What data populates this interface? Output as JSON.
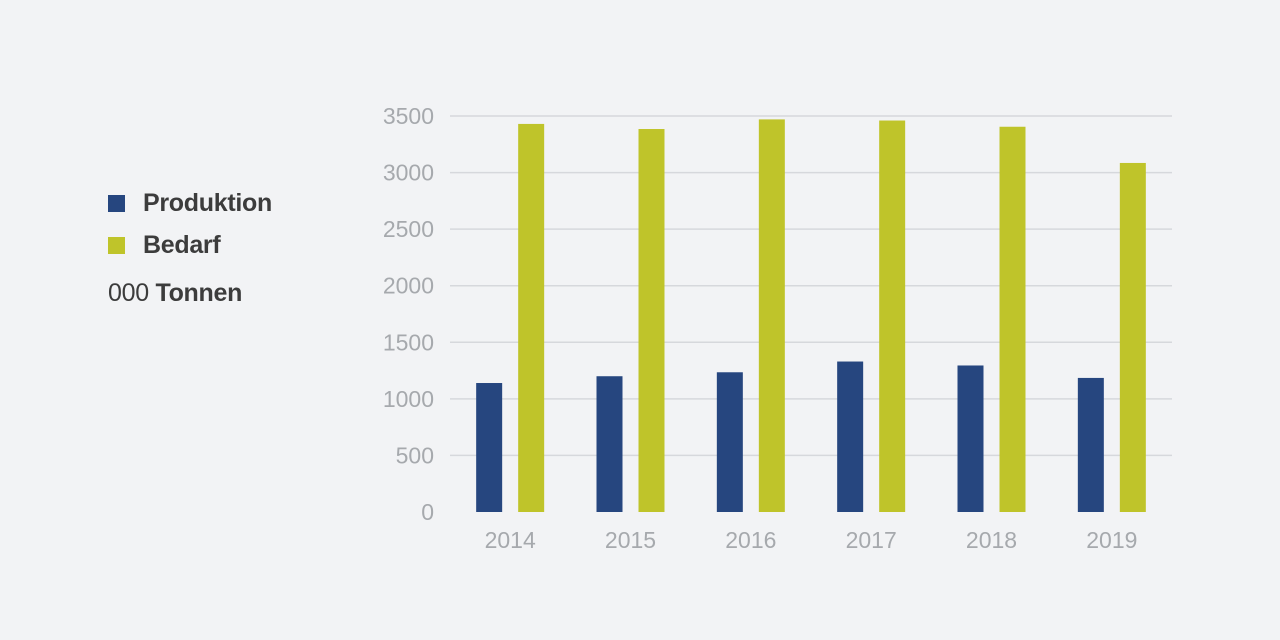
{
  "legend": {
    "items": [
      {
        "label": "Produktion",
        "color": "#26467f"
      },
      {
        "label": "Bedarf",
        "color": "#bfc42a"
      }
    ],
    "unit_number": "000",
    "unit_word": "Tonnen"
  },
  "chart_data": {
    "type": "bar",
    "categories": [
      "2014",
      "2015",
      "2016",
      "2017",
      "2018",
      "2019"
    ],
    "series": [
      {
        "name": "Produktion",
        "color": "#26467f",
        "values": [
          1140,
          1200,
          1235,
          1330,
          1295,
          1185
        ]
      },
      {
        "name": "Bedarf",
        "color": "#bfc42a",
        "values": [
          3430,
          3385,
          3470,
          3460,
          3405,
          3085
        ]
      }
    ],
    "ylim": [
      0,
      3500
    ],
    "yticks": [
      0,
      500,
      1000,
      1500,
      2000,
      2500,
      3000,
      3500
    ],
    "grid": true,
    "legend_position": "left",
    "title": "",
    "xlabel": "",
    "ylabel": ""
  }
}
